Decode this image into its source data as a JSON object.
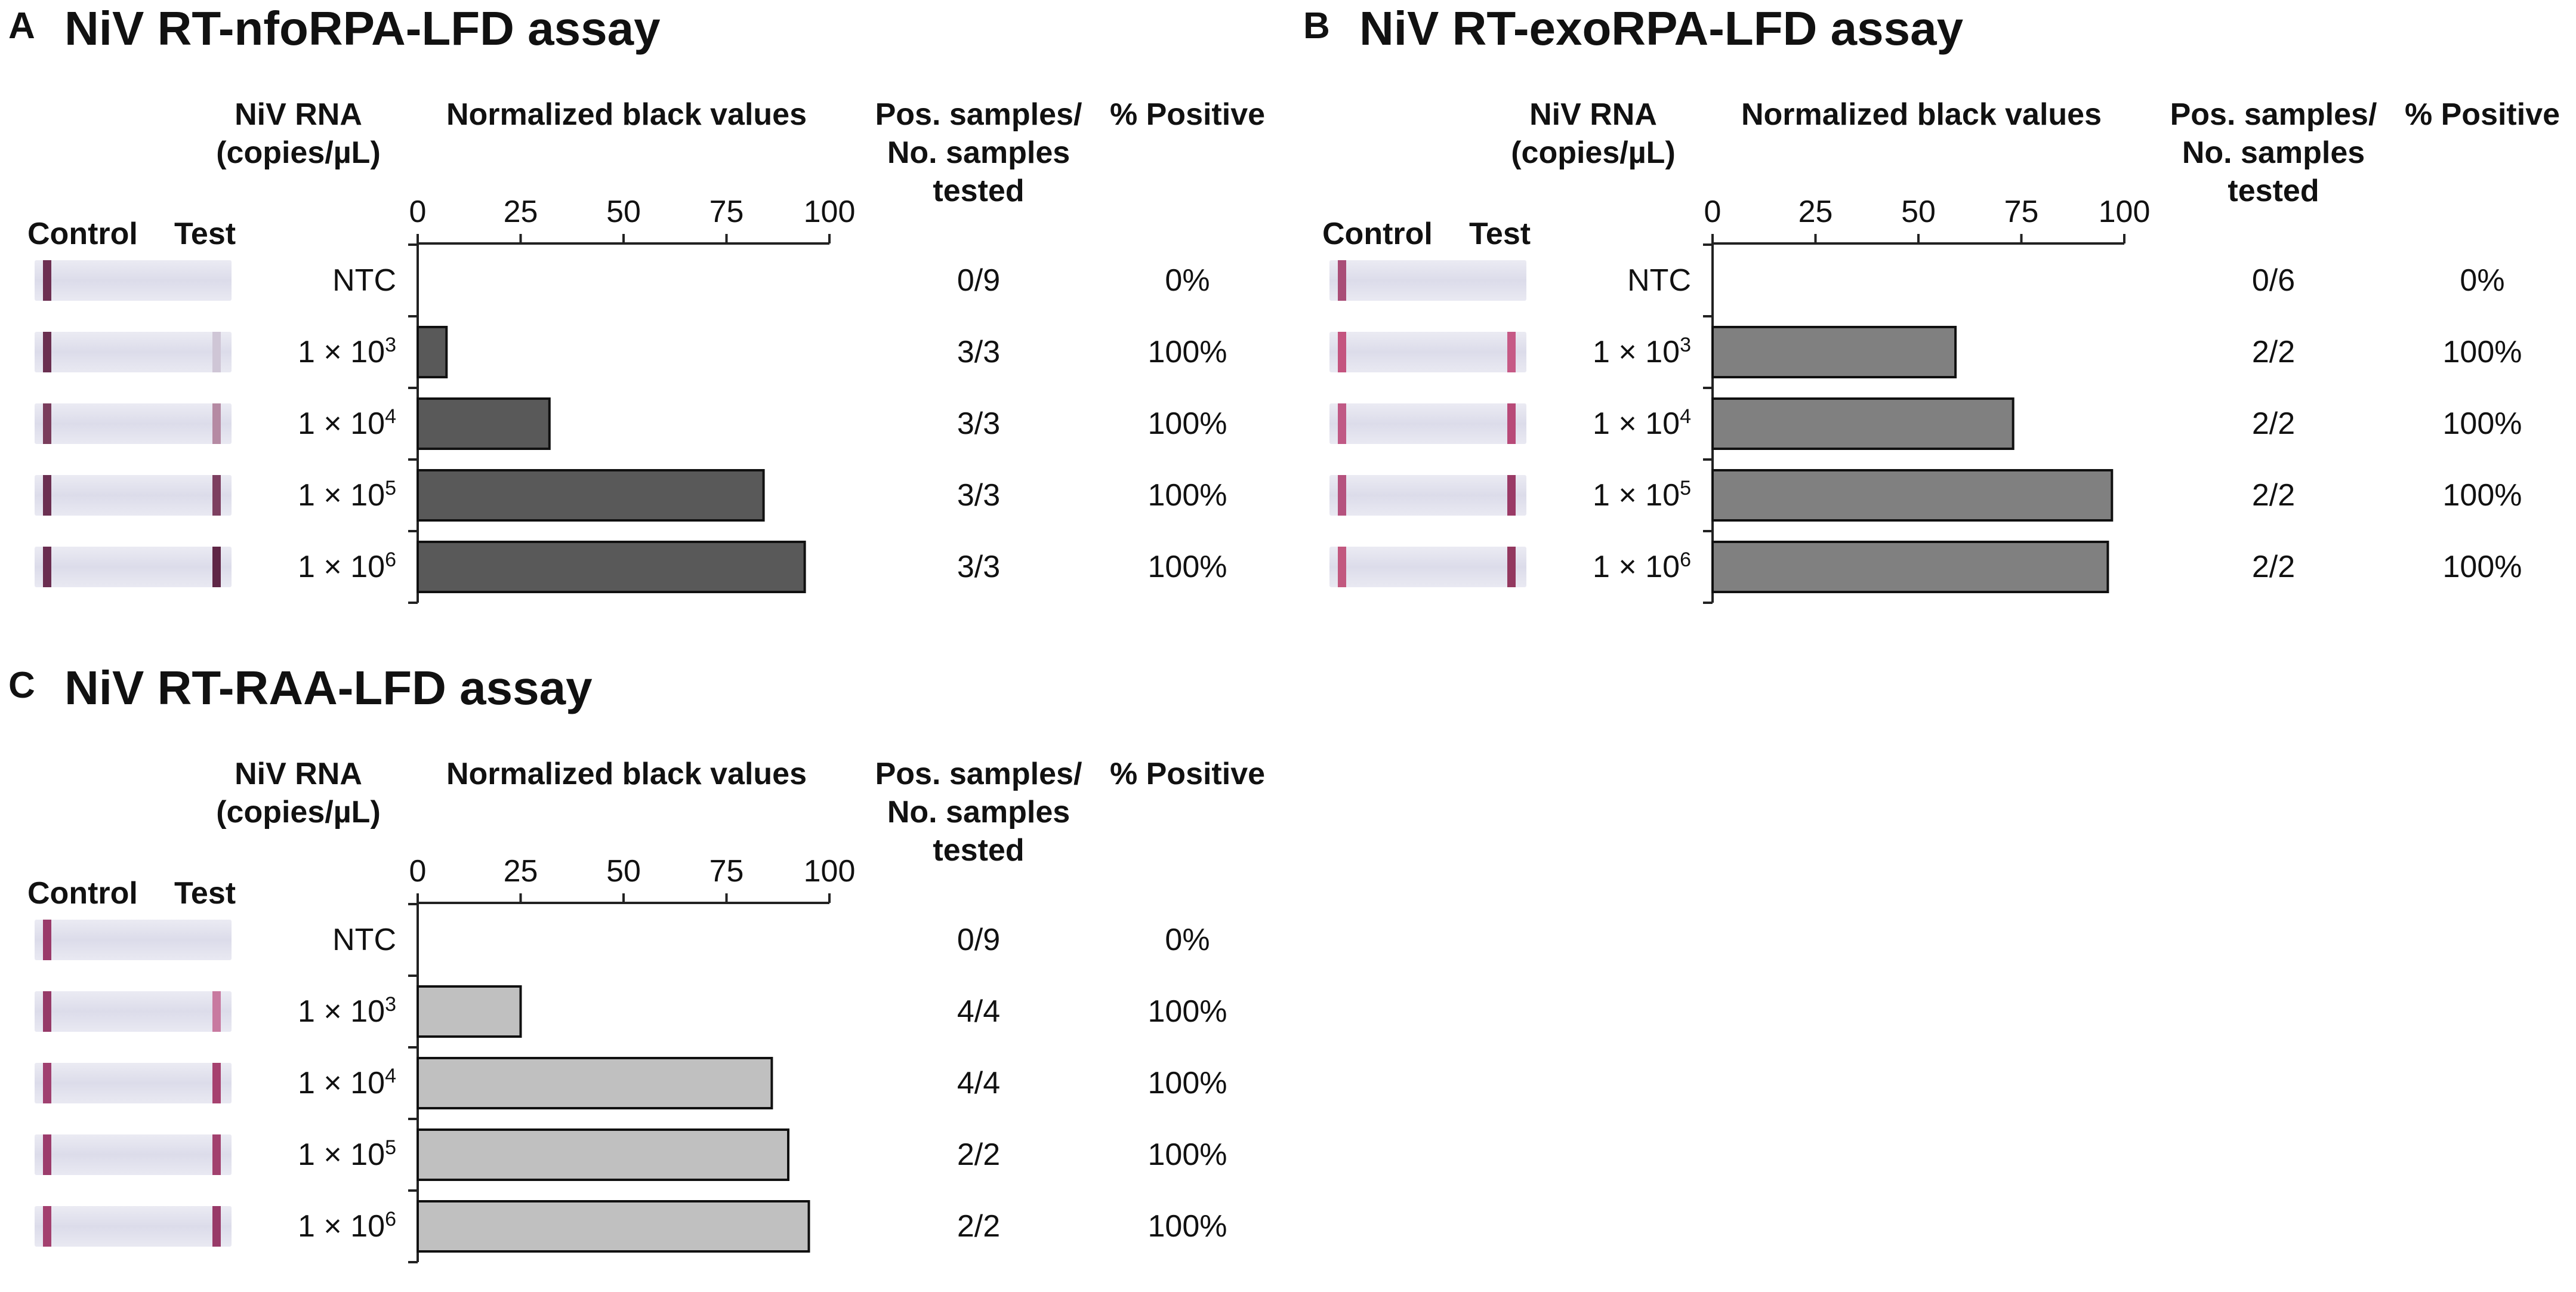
{
  "headers": {
    "control": "Control",
    "test": "Test",
    "rna_line1": "NiV RNA",
    "rna_line2": "(copies/µL)",
    "nbv": "Normalized black values",
    "pos_line1": "Pos. samples/",
    "pos_line2": "No. samples",
    "pos_line3": "tested",
    "pct": "% Positive"
  },
  "concentration": {
    "prefix": "1 × 10",
    "ntc": "NTC"
  },
  "chart_data": [
    {
      "type": "bar",
      "letter": "A",
      "title": "NiV RT-nfoRPA-LFD assay",
      "xlabel": "Normalized black values",
      "xlim": [
        0,
        100
      ],
      "xticks": [
        0,
        25,
        50,
        75,
        100
      ],
      "bar_color": "#595959",
      "categories": [
        "NTC",
        "1 × 10^3",
        "1 × 10^4",
        "1 × 10^5",
        "1 × 10^6"
      ],
      "exponents": [
        "",
        "3",
        "4",
        "5",
        "6"
      ],
      "values": [
        0,
        7,
        32,
        84,
        94
      ],
      "pos_samples": [
        "0/9",
        "3/3",
        "3/3",
        "3/3",
        "3/3"
      ],
      "percent_positive": [
        "0%",
        "100%",
        "100%",
        "100%",
        "100%"
      ],
      "control_band_color": [
        "#6d2f52",
        "#6a2f50",
        "#7a3d5c",
        "#6b2f51",
        "#6a2d50"
      ],
      "test_band_color": [
        "none",
        "#cfc6d6",
        "#b58aa3",
        "#7d3f60",
        "#5f2646"
      ],
      "grid": false
    },
    {
      "type": "bar",
      "letter": "B",
      "title": "NiV RT-exoRPA-LFD assay",
      "xlabel": "Normalized black values",
      "xlim": [
        0,
        100
      ],
      "xticks": [
        0,
        25,
        50,
        75,
        100
      ],
      "bar_color": "#808080",
      "categories": [
        "NTC",
        "1 × 10^3",
        "1 × 10^4",
        "1 × 10^5",
        "1 × 10^6"
      ],
      "exponents": [
        "",
        "3",
        "4",
        "5",
        "6"
      ],
      "values": [
        0,
        59,
        73,
        97,
        96
      ],
      "pos_samples": [
        "0/6",
        "2/2",
        "2/2",
        "2/2",
        "2/2"
      ],
      "percent_positive": [
        "0%",
        "100%",
        "100%",
        "100%",
        "100%"
      ],
      "control_band_color": [
        "#a94d77",
        "#c4547f",
        "#c05985",
        "#b5527e",
        "#c2587f"
      ],
      "test_band_color": [
        "none",
        "#c65a86",
        "#b84a78",
        "#9a3a66",
        "#93385f"
      ],
      "grid": false
    },
    {
      "type": "bar",
      "letter": "C",
      "title": "NiV RT-RAA-LFD assay",
      "xlabel": "Normalized black values",
      "xlim": [
        0,
        100
      ],
      "xticks": [
        0,
        25,
        50,
        75,
        100
      ],
      "bar_color": "#c0c0c0",
      "categories": [
        "NTC",
        "1 × 10^3",
        "1 × 10^4",
        "1 × 10^5",
        "1 × 10^6"
      ],
      "exponents": [
        "",
        "3",
        "4",
        "5",
        "6"
      ],
      "values": [
        0,
        25,
        86,
        90,
        95
      ],
      "pos_samples": [
        "0/9",
        "4/4",
        "4/4",
        "2/2",
        "2/2"
      ],
      "percent_positive": [
        "0%",
        "100%",
        "100%",
        "100%",
        "100%"
      ],
      "control_band_color": [
        "#9a3a6a",
        "#963a68",
        "#a04070",
        "#9c3c6c",
        "#a3406f"
      ],
      "test_band_color": [
        "none",
        "#c87aa0",
        "#a6416f",
        "#a2416e",
        "#983a68"
      ],
      "grid": false
    }
  ]
}
